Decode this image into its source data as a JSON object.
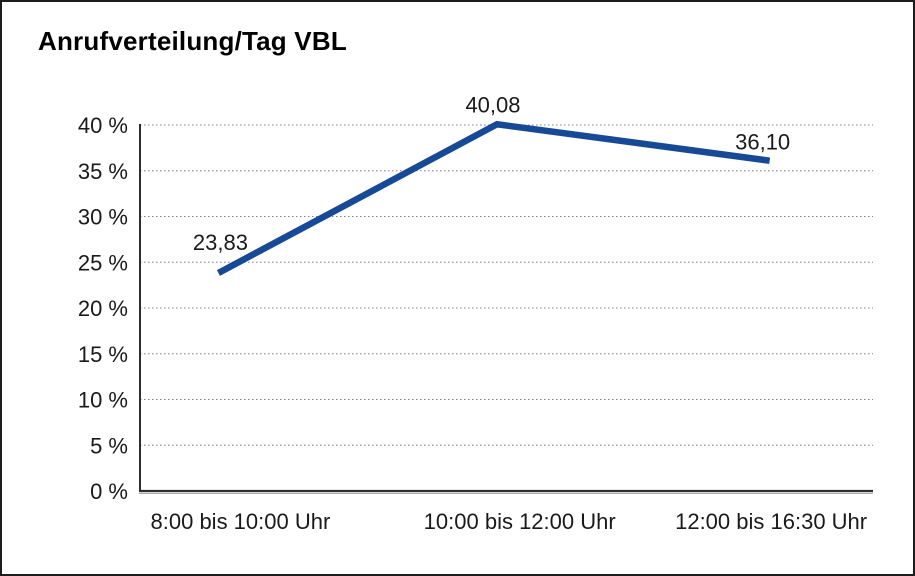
{
  "chart_data": {
    "type": "line",
    "title": "Anrufverteilung/Tag VBL",
    "categories": [
      "8:00 bis 10:00 Uhr",
      "10:00 bis 12:00 Uhr",
      "12:00 bis 16:30 Uhr"
    ],
    "values": [
      23.83,
      40.08,
      36.1
    ],
    "value_labels": [
      "23,83",
      "40,08",
      "36,10"
    ],
    "y_ticks": [
      {
        "value": 0,
        "label": "0 %"
      },
      {
        "value": 5,
        "label": "5 %"
      },
      {
        "value": 10,
        "label": "10 %"
      },
      {
        "value": 15,
        "label": "15 %"
      },
      {
        "value": 20,
        "label": "20 %"
      },
      {
        "value": 25,
        "label": "25 %"
      },
      {
        "value": 30,
        "label": "30 %"
      },
      {
        "value": 35,
        "label": "35 %"
      },
      {
        "value": 40,
        "label": "40 %"
      }
    ],
    "ylim": [
      0,
      40
    ],
    "xlabel": "",
    "ylabel": "",
    "grid": "horizontal-dotted",
    "legend": "none",
    "colors": {
      "line": "#164A96",
      "grid": "#808080",
      "axis": "#2E2E2E",
      "axis_shadow": "#9E9E9E",
      "text": "#1A1A1A",
      "title": "#000000",
      "background": "#FFFFFF",
      "frame_border": "#1C1C1C"
    }
  }
}
